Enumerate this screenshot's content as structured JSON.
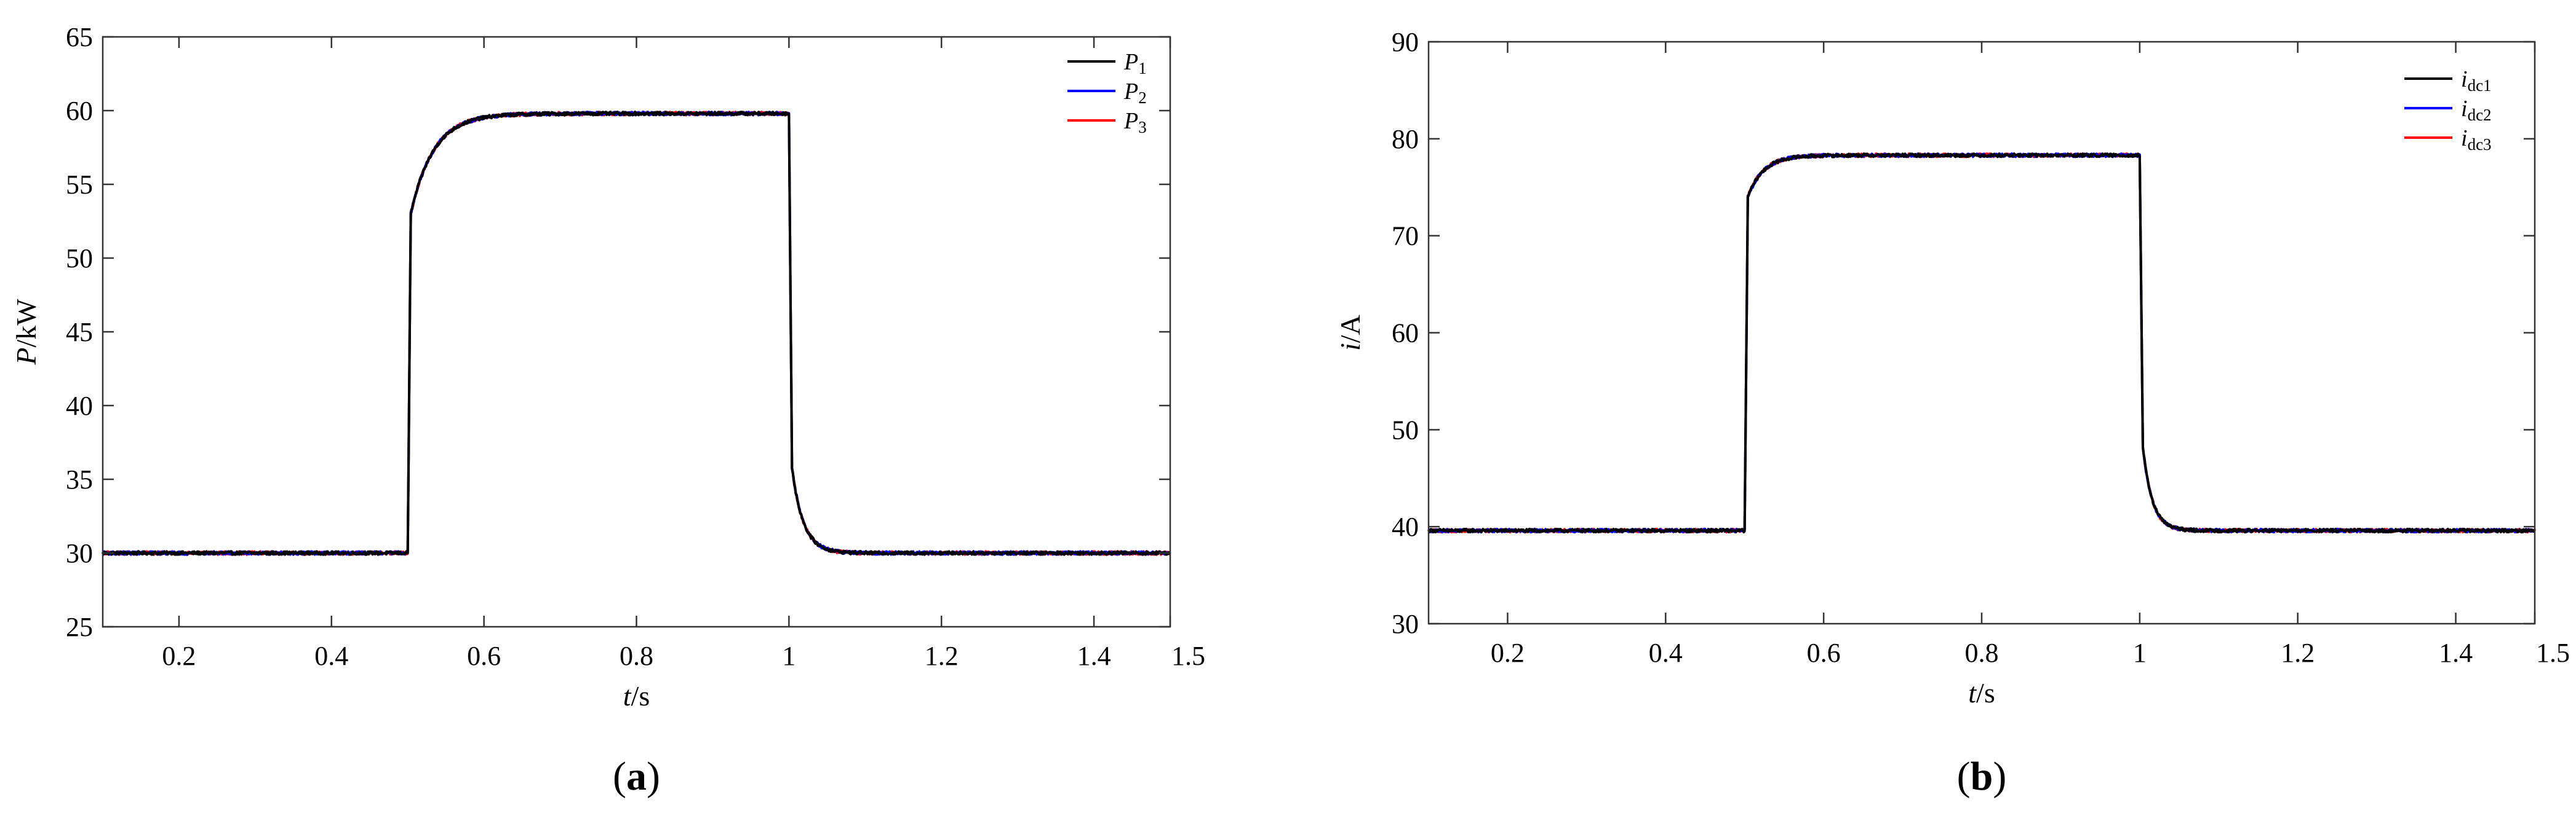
{
  "chart_data": [
    {
      "type": "line",
      "panel_label": "a",
      "xlabel": {
        "italic": "t",
        "unit": "/s"
      },
      "ylabel": {
        "italic": "P",
        "unit": "/kW"
      },
      "xlim": [
        0.1,
        1.5
      ],
      "ylim": [
        25,
        65
      ],
      "xticks": [
        0.2,
        0.4,
        0.6,
        0.8,
        1,
        1.2,
        1.4,
        1.5
      ],
      "xtick_labels": [
        "0.2",
        "0.4",
        "0.6",
        "0.8",
        "1",
        "1.2",
        "1.4",
        "1.5"
      ],
      "yticks": [
        25,
        30,
        35,
        40,
        45,
        50,
        55,
        60,
        65
      ],
      "ytick_labels": [
        "25",
        "30",
        "35",
        "40",
        "45",
        "50",
        "55",
        "60",
        "65"
      ],
      "grid": false,
      "legend": "top-right",
      "series": [
        {
          "base": "P",
          "sub": "1",
          "color": "#000000"
        },
        {
          "base": "P",
          "sub": "2",
          "color": "#0000ff"
        },
        {
          "base": "P",
          "sub": "3",
          "color": "#ff0000"
        }
      ],
      "profile": {
        "t_step_up": 0.5,
        "t_step_down": 1.0,
        "low": 30,
        "high": 59.8,
        "jump_level": 53,
        "tau_up": 0.03,
        "tau_down": 0.015
      }
    },
    {
      "type": "line",
      "panel_label": "b",
      "xlabel": {
        "italic": "t",
        "unit": "/s"
      },
      "ylabel": {
        "italic": "i",
        "unit": "/A"
      },
      "xlim": [
        0.1,
        1.5
      ],
      "ylim": [
        30,
        90
      ],
      "xticks": [
        0.2,
        0.4,
        0.6,
        0.8,
        1,
        1.2,
        1.4,
        1.5
      ],
      "xtick_labels": [
        "0.2",
        "0.4",
        "0.6",
        "0.8",
        "1",
        "1.2",
        "1.4",
        "1.5"
      ],
      "yticks": [
        30,
        40,
        50,
        60,
        70,
        80,
        90
      ],
      "ytick_labels": [
        "30",
        "40",
        "50",
        "60",
        "70",
        "80",
        "90"
      ],
      "grid": false,
      "legend": "top-right",
      "series": [
        {
          "base": "i",
          "sub": "dc1",
          "color": "#000000"
        },
        {
          "base": "i",
          "sub": "dc2",
          "color": "#0000ff"
        },
        {
          "base": "i",
          "sub": "dc3",
          "color": "#ff0000"
        }
      ],
      "profile": {
        "t_step_up": 0.5,
        "t_step_down": 1.0,
        "low": 39.6,
        "high": 78.3,
        "jump_level": 74,
        "tau_up": 0.02,
        "tau_down": 0.012
      }
    }
  ]
}
